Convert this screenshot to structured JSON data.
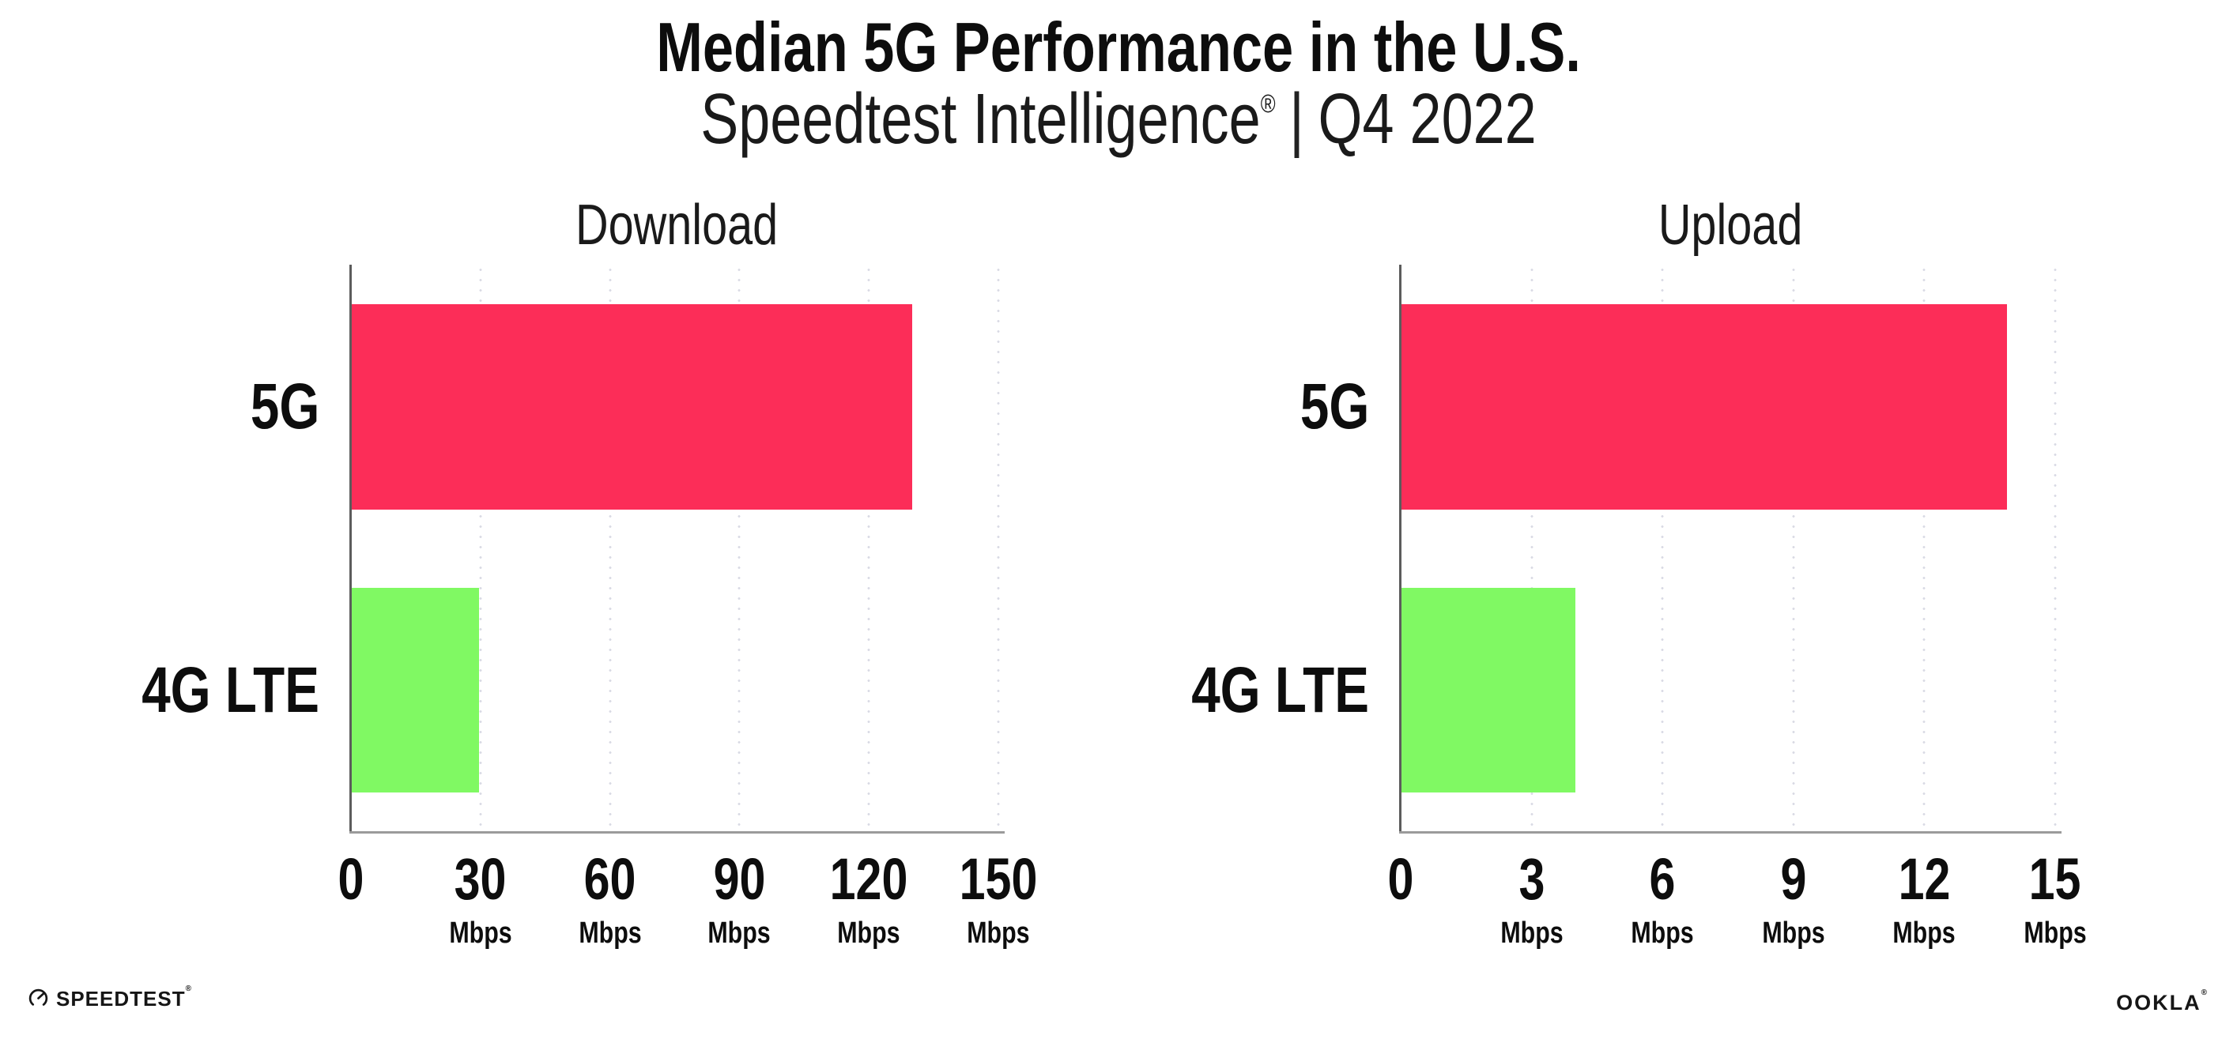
{
  "header": {
    "title": "Median 5G Performance in the U.S.",
    "subtitle_brand": "Speedtest Intelligence",
    "subtitle_reg": "®",
    "subtitle_sep": "|",
    "subtitle_period": "Q4 2022"
  },
  "chart_data": [
    {
      "type": "bar",
      "orientation": "horizontal",
      "title": "Download",
      "unit": "Mbps",
      "categories": [
        "5G",
        "4G LTE"
      ],
      "values": [
        130,
        29.6
      ],
      "colors": [
        "#FC2D58",
        "#80F963"
      ],
      "xlim": [
        0,
        150
      ],
      "ticks": [
        0,
        30,
        60,
        90,
        120,
        150
      ],
      "gridlines": "dotted-vertical",
      "legend": "none"
    },
    {
      "type": "bar",
      "orientation": "horizontal",
      "title": "Upload",
      "unit": "Mbps",
      "categories": [
        "5G",
        "4G LTE"
      ],
      "values": [
        13.9,
        4.0
      ],
      "colors": [
        "#FC2D58",
        "#80F963"
      ],
      "xlim": [
        0,
        15
      ],
      "ticks": [
        0,
        3,
        6,
        9,
        12,
        15
      ],
      "gridlines": "dotted-vertical",
      "legend": "none"
    }
  ],
  "footer": {
    "speedtest_label": "SPEEDTEST",
    "speedtest_reg": "®",
    "ookla_label": "OOKLA",
    "ookla_reg": "®"
  },
  "colors": {
    "bar_5g": "#FC2D58",
    "bar_4g_lte": "#80F963",
    "axis_spine": "#5C5C5C",
    "axis_baseline": "#9B9B9B",
    "gridline_dot": "#D9DAE4",
    "text": "#111111",
    "background": "#FFFFFF"
  }
}
